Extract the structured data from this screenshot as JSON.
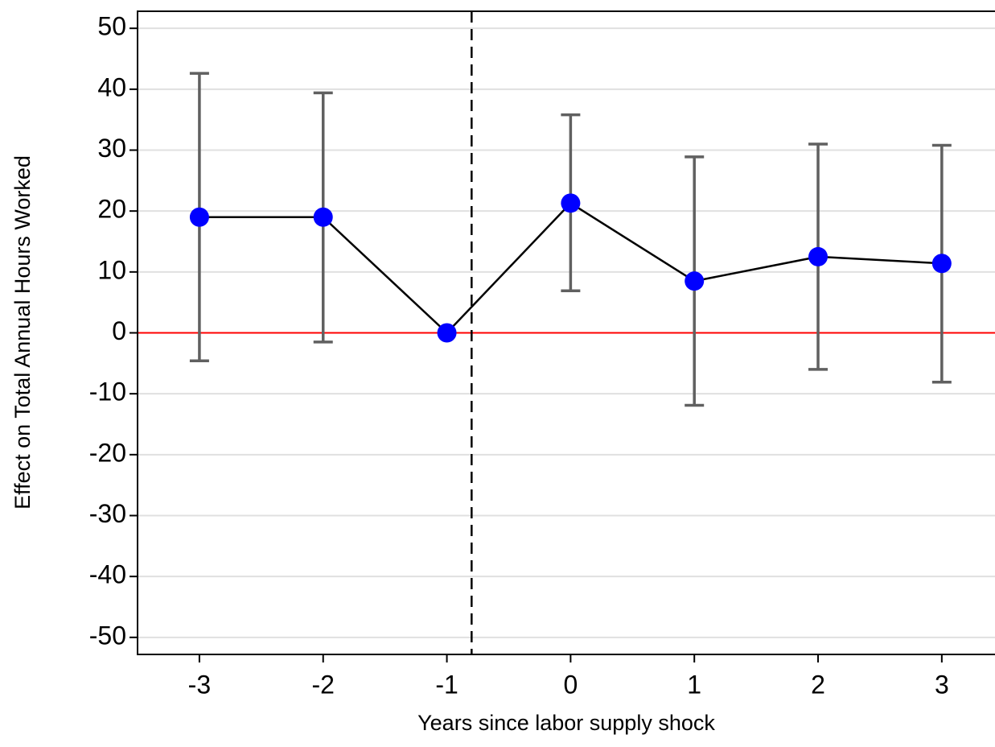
{
  "chart_data": {
    "type": "errorbar",
    "x_label": "Years since labor supply shock",
    "y_label": "Effect on Total Annual Hours Worked",
    "x": [
      -3,
      -2,
      -1,
      0,
      1,
      2,
      3
    ],
    "values": [
      19,
      19,
      0,
      21.3,
      8.5,
      12.5,
      11.4
    ],
    "lower": [
      -4.6,
      -1.5,
      null,
      6.9,
      -11.9,
      -6.0,
      -8.1
    ],
    "upper": [
      42.6,
      39.4,
      null,
      35.8,
      28.9,
      31.0,
      30.8
    ],
    "marker_color": "#0000ff",
    "line_color": "#000000",
    "errorbar_color": "#606060",
    "xlim": [
      -3.5,
      3.43
    ],
    "ylim": [
      -52.8,
      52.8
    ],
    "xticks": [
      -3,
      -2,
      -1,
      0,
      1,
      2,
      3
    ],
    "yticks": [
      -50,
      -40,
      -30,
      -20,
      -10,
      0,
      10,
      20,
      30,
      40,
      50
    ],
    "grid": true,
    "vline": {
      "x": -0.8,
      "color": "#000000",
      "dashed": true
    },
    "hline": {
      "y": 0,
      "color": "#ff0000"
    }
  }
}
